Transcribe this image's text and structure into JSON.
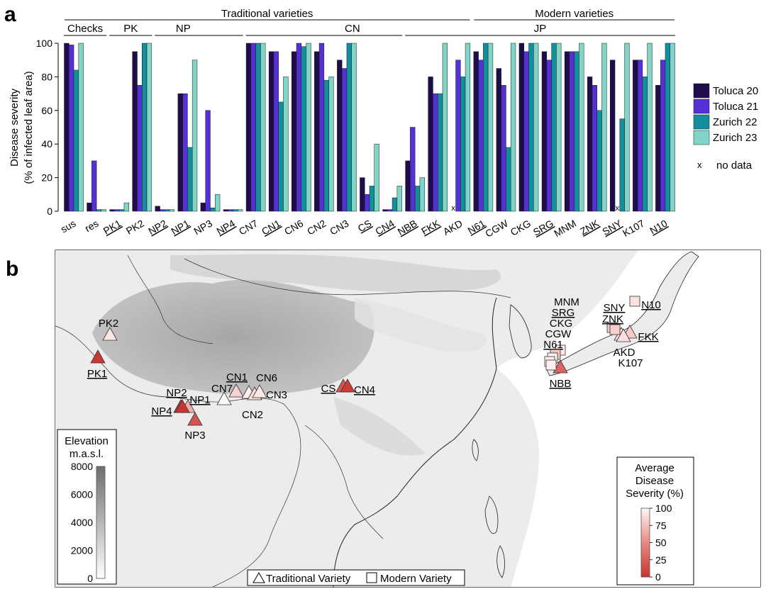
{
  "panel_a_letter": "a",
  "panel_b_letter": "b",
  "colors": {
    "Toluca 20": "#1f0d4b",
    "Toluca 21": "#5530d4",
    "Zurich 22": "#148e9c",
    "Zurich 23": "#7fd6c8"
  },
  "chart_data": [
    {
      "type": "bar",
      "ylabel_line1": "Disease severity",
      "ylabel_line2": "(% of infected leaf area)",
      "ylim": [
        0,
        100
      ],
      "yticks": [
        0,
        20,
        40,
        60,
        80,
        100
      ],
      "legend_position": "right",
      "no_data_marker": "x",
      "no_data_label": "no data",
      "group_headers": [
        {
          "label": "Traditional varieties"
        },
        {
          "label": "Modern varieties"
        }
      ],
      "subgroups": [
        {
          "label": "Checks"
        },
        {
          "label": "PK"
        },
        {
          "label": "NP"
        },
        {
          "label": "CN"
        },
        {
          "label": "JP"
        }
      ],
      "categories": [
        "sus",
        "res",
        "PK1",
        "PK2",
        "NP2",
        "NP1",
        "NP3",
        "NP4",
        "CN7",
        "CN1",
        "CN6",
        "CN2",
        "CN3",
        "CS",
        "CN4",
        "NBB",
        "FKK",
        "AKD",
        "N61",
        "CGW",
        "CKG",
        "SRG",
        "MNM",
        "ZNK",
        "SNY",
        "K107",
        "N10"
      ],
      "underlined": [
        "PK1",
        "NP2",
        "NP1",
        "NP4",
        "CN1",
        "CS",
        "CN4",
        "NBB",
        "FKK",
        "N61",
        "SRG",
        "ZNK",
        "SNY",
        "N10"
      ],
      "series": [
        {
          "name": "Toluca 20",
          "values": [
            100,
            5,
            1,
            95,
            3,
            70,
            5,
            1,
            100,
            95,
            95,
            95,
            90,
            20,
            1,
            30,
            80,
            null,
            95,
            85,
            100,
            95,
            95,
            80,
            90,
            90,
            75
          ]
        },
        {
          "name": "Toluca 21",
          "values": [
            99,
            30,
            1,
            75,
            1,
            70,
            60,
            1,
            100,
            95,
            100,
            100,
            85,
            10,
            1,
            50,
            70,
            90,
            90,
            75,
            95,
            90,
            95,
            75,
            null,
            90,
            90
          ]
        },
        {
          "name": "Zurich 22",
          "values": [
            84,
            1,
            1,
            100,
            1,
            38,
            2,
            1,
            100,
            65,
            98,
            78,
            100,
            15,
            8,
            15,
            70,
            80,
            100,
            38,
            100,
            100,
            95,
            60,
            55,
            80,
            100
          ]
        },
        {
          "name": "Zurich 23",
          "values": [
            100,
            1,
            5,
            100,
            1,
            90,
            10,
            1,
            100,
            80,
            100,
            80,
            100,
            40,
            15,
            20,
            100,
            100,
            100,
            100,
            100,
            100,
            100,
            100,
            100,
            100,
            100
          ]
        }
      ]
    },
    {
      "type": "map",
      "elevation_legend_title_line1": "Elevation",
      "elevation_legend_title_line2": "m.a.s.l.",
      "elevation_ticks": [
        0,
        2000,
        4000,
        6000,
        8000
      ],
      "severity_legend_title_line1": "Average",
      "severity_legend_title_line2": "Disease",
      "severity_legend_title_line3": "Severity (%)",
      "severity_ticks": [
        0,
        25,
        50,
        75,
        100
      ],
      "shape_legend_traditional": "Traditional Variety",
      "shape_legend_modern": "Modern Variety",
      "sites": [
        {
          "label": "PK2",
          "shape": "triangle",
          "severity": 93
        },
        {
          "label": "PK1",
          "shape": "triangle",
          "severity": 2
        },
        {
          "label": "NP2",
          "shape": "triangle",
          "severity": 2
        },
        {
          "label": "NP1",
          "shape": "triangle",
          "severity": 67
        },
        {
          "label": "NP4",
          "shape": "triangle",
          "severity": 1
        },
        {
          "label": "NP3",
          "shape": "triangle",
          "severity": 19
        },
        {
          "label": "CN7",
          "shape": "triangle",
          "severity": 100
        },
        {
          "label": "CN1",
          "shape": "triangle",
          "severity": 84
        },
        {
          "label": "CN6",
          "shape": "triangle",
          "severity": 98
        },
        {
          "label": "CN2",
          "shape": "triangle",
          "severity": 88
        },
        {
          "label": "CN3",
          "shape": "triangle",
          "severity": 94
        },
        {
          "label": "CS",
          "shape": "triangle",
          "severity": 21
        },
        {
          "label": "CN4",
          "shape": "triangle",
          "severity": 6
        },
        {
          "label": "NBB",
          "shape": "triangle",
          "severity": 29
        },
        {
          "label": "FKK",
          "shape": "triangle",
          "severity": 80
        },
        {
          "label": "AKD",
          "shape": "triangle",
          "severity": 90
        },
        {
          "label": "K107",
          "shape": "triangle",
          "severity": 90
        },
        {
          "label": "N61",
          "shape": "square",
          "severity": 96
        },
        {
          "label": "CGW",
          "shape": "square",
          "severity": 75
        },
        {
          "label": "CKG",
          "shape": "square",
          "severity": 99
        },
        {
          "label": "SRG",
          "shape": "square",
          "severity": 96
        },
        {
          "label": "MNM",
          "shape": "square",
          "severity": 96
        },
        {
          "label": "ZNK",
          "shape": "square",
          "severity": 79
        },
        {
          "label": "SNY",
          "shape": "square",
          "severity": 82
        },
        {
          "label": "N10",
          "shape": "square",
          "severity": 91
        }
      ]
    }
  ]
}
